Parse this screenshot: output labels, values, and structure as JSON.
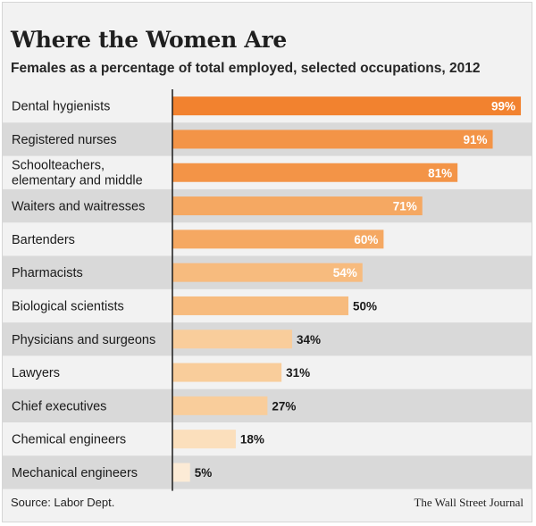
{
  "header": {
    "title": "Where the Women Are",
    "subtitle": "Females as a percentage of total employed, selected occupations, 2012"
  },
  "footer": {
    "source": "Source: Labor Dept.",
    "credit": "The Wall Street Journal"
  },
  "colors": {
    "band_shade": "#d9d9d9",
    "bar_scale": [
      "#f2822f",
      "#f39447",
      "#f5a862",
      "#f7bb7e",
      "#f9cd9b",
      "#fbdfbc",
      "#fcebd6"
    ],
    "axis": "#1a1a1a"
  },
  "chart_data": {
    "type": "bar",
    "orientation": "horizontal",
    "title": "Where the Women Are",
    "subtitle": "Females as a percentage of total employed, selected occupations, 2012",
    "categories": [
      [
        "Dental hygienists"
      ],
      [
        "Registered nurses"
      ],
      [
        "Schoolteachers,",
        "elementary and middle"
      ],
      [
        "Waiters and waitresses"
      ],
      [
        "Bartenders"
      ],
      [
        "Pharmacists"
      ],
      [
        "Biological scientists"
      ],
      [
        "Physicians and surgeons"
      ],
      [
        "Lawyers"
      ],
      [
        "Chief executives"
      ],
      [
        "Chemical engineers"
      ],
      [
        "Mechanical engineers"
      ]
    ],
    "values": [
      99,
      91,
      81,
      71,
      60,
      54,
      50,
      34,
      31,
      27,
      18,
      5
    ],
    "labels": [
      "99%",
      "91%",
      "81%",
      "71%",
      "60%",
      "54%",
      "50%",
      "34%",
      "31%",
      "27%",
      "18%",
      "5%"
    ],
    "xlim": [
      0,
      100
    ],
    "grid": false,
    "legend": "none"
  }
}
